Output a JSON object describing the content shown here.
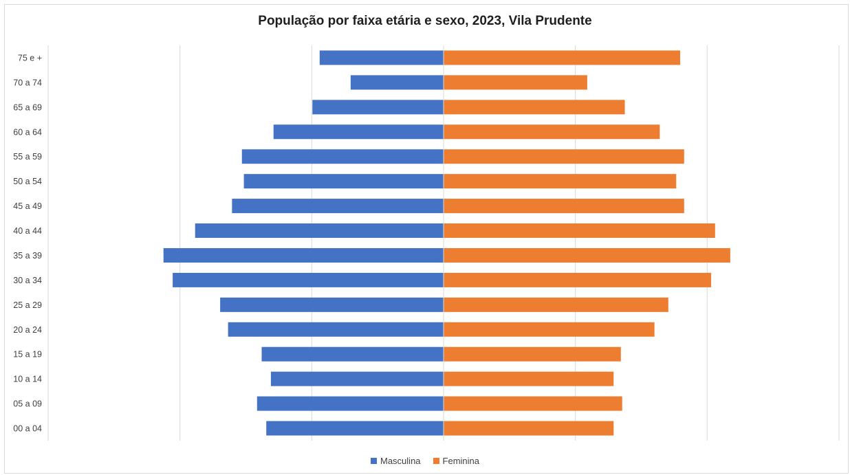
{
  "chart_data": {
    "type": "bar",
    "orientation": "horizontal",
    "title": "População por faixa etária e sexo, 2023, Vila Prudente",
    "categories": [
      "75 e +",
      "70 a 74",
      "65 a 69",
      "60 a 64",
      "55 a 59",
      "50 a 54",
      "45 a 49",
      "40 a 44",
      "35 a 39",
      "30 a 34",
      "25 a 29",
      "20 a 24",
      "15 a 19",
      "10 a 14",
      "05 a 09",
      "00 a 04"
    ],
    "series": [
      {
        "name": "Masculina",
        "color": "#4472C4",
        "values": [
          940,
          705,
          995,
          1290,
          1530,
          1515,
          1605,
          1885,
          2125,
          2055,
          1695,
          1635,
          1380,
          1310,
          1415,
          1345
        ]
      },
      {
        "name": "Feminina",
        "color": "#ED7D31",
        "values": [
          1795,
          1090,
          1375,
          1640,
          1825,
          1765,
          1825,
          2060,
          2175,
          2030,
          1705,
          1600,
          1345,
          1290,
          1355,
          1290
        ]
      }
    ],
    "xlim": [
      -3000,
      3000
    ],
    "grid": true,
    "legend_position": "bottom"
  }
}
